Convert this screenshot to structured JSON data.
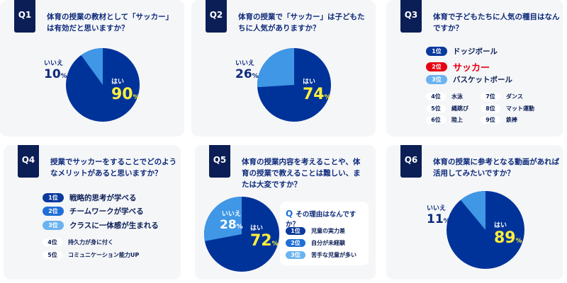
{
  "colors": {
    "dark": "#0b1e55",
    "yes": "#003399",
    "no": "#3f97e6",
    "red": "#e60012",
    "mid": "#1f6fd6",
    "light": "#6bb3f0",
    "yellow": "#fff03c"
  },
  "q1": {
    "tag": "Q1",
    "question": "体育の授業の教材として「サッカー」は有効だと思いますか？",
    "yes_label": "はい",
    "yes_value": "90",
    "no_label": "いいえ",
    "no_value": "10",
    "unit": "%"
  },
  "q2": {
    "tag": "Q2",
    "question": "体育の授業で「サッカー」は子どもたちに人気がありますか？",
    "yes_label": "はい",
    "yes_value": "74",
    "no_label": "いいえ",
    "no_value": "26",
    "unit": "%"
  },
  "q3": {
    "tag": "Q3",
    "question": "体育で子どもたちに人気の種目はなんですか？",
    "top": [
      {
        "rank": "1位",
        "item": "ドッジボール"
      },
      {
        "rank": "2位",
        "item": "サッカー"
      },
      {
        "rank": "3位",
        "item": "バスケットボール"
      }
    ],
    "others": [
      {
        "rank": "4位",
        "item": "水泳"
      },
      {
        "rank": "5位",
        "item": "縄跳び"
      },
      {
        "rank": "6位",
        "item": "陸上"
      },
      {
        "rank": "7位",
        "item": "ダンス"
      },
      {
        "rank": "8位",
        "item": "マット運動"
      },
      {
        "rank": "9位",
        "item": "鉄棒"
      }
    ]
  },
  "q4": {
    "tag": "Q4",
    "question": "授業でサッカーをすることでどのようなメリットがあると思いますか？",
    "top": [
      {
        "rank": "1位",
        "item": "戦略的思考が学べる"
      },
      {
        "rank": "2位",
        "item": "チームワークが学べる"
      },
      {
        "rank": "3位",
        "item": "クラスに一体感が生まれる"
      }
    ],
    "others": [
      {
        "rank": "4位",
        "item": "持久力が身に付く"
      },
      {
        "rank": "5位",
        "item": "コミュニケーション能力UP"
      }
    ]
  },
  "q5": {
    "tag": "Q5",
    "question": "体育の授業内容を考えることや、体育の授業で教えることは難しい、または大変ですか？",
    "yes_label": "はい",
    "yes_value": "72",
    "no_label": "いいえ",
    "no_value": "28",
    "unit": "%",
    "sub_q": "Q",
    "sub_title": "その理由はなんですか？",
    "reasons": [
      {
        "rank": "1位",
        "item": "児童の実力差"
      },
      {
        "rank": "2位",
        "item": "自分が未経験"
      },
      {
        "rank": "3位",
        "item": "苦手な児童が多い"
      }
    ]
  },
  "q6": {
    "tag": "Q6",
    "question": "体育の授業に参考となる動画があれば活用してみたいですか？",
    "yes_label": "はい",
    "yes_value": "89",
    "no_label": "いいえ",
    "no_value": "11",
    "unit": "%"
  },
  "chart_data": [
    {
      "type": "pie",
      "title": "Q1",
      "categories": [
        "はい",
        "いいえ"
      ],
      "values": [
        90,
        10
      ]
    },
    {
      "type": "pie",
      "title": "Q2",
      "categories": [
        "はい",
        "いいえ"
      ],
      "values": [
        74,
        26
      ]
    },
    {
      "type": "pie",
      "title": "Q5",
      "categories": [
        "はい",
        "いいえ"
      ],
      "values": [
        72,
        28
      ]
    },
    {
      "type": "pie",
      "title": "Q6",
      "categories": [
        "はい",
        "いいえ"
      ],
      "values": [
        89,
        11
      ]
    }
  ]
}
